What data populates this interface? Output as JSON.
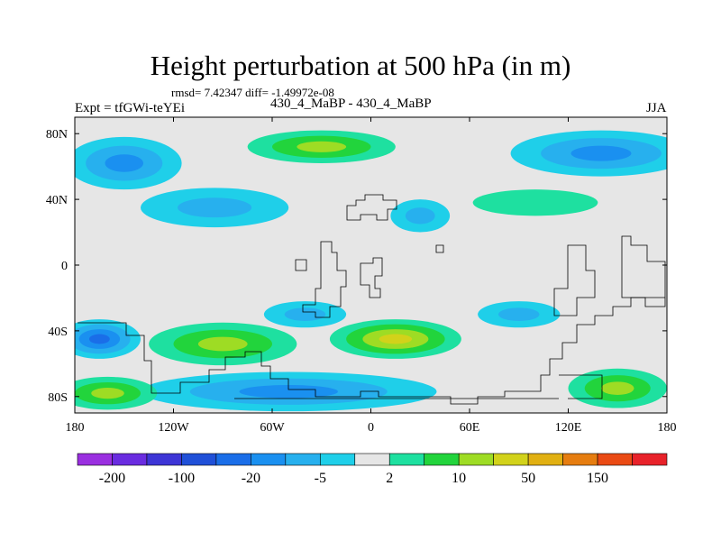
{
  "title": "Height perturbation at 500 hPa (in m)",
  "stats": "rmsd= 7.42347 diff= -1.49972e-08",
  "left_label": "Expt = tfGWi-teYEi",
  "center_label": "430_4_MaBP - 430_4_MaBP",
  "right_label": "JJA",
  "chart_data": {
    "type": "heatmap",
    "title": "Height perturbation at 500 hPa (in m)",
    "xlabel": "",
    "ylabel": "",
    "xlim": [
      -180,
      180
    ],
    "ylim": [
      -90,
      90
    ],
    "x_ticks": [
      {
        "value": -180,
        "label": "180"
      },
      {
        "value": -120,
        "label": "120W"
      },
      {
        "value": -60,
        "label": "60W"
      },
      {
        "value": 0,
        "label": "0"
      },
      {
        "value": 60,
        "label": "60E"
      },
      {
        "value": 120,
        "label": "120E"
      },
      {
        "value": 180,
        "label": "180"
      }
    ],
    "y_ticks": [
      {
        "value": 80,
        "label": "80N"
      },
      {
        "value": 40,
        "label": "40N"
      },
      {
        "value": 0,
        "label": "0"
      },
      {
        "value": -40,
        "label": "40S"
      },
      {
        "value": -80,
        "label": "80S"
      }
    ],
    "colorbar": {
      "colors": [
        "#9a2fe0",
        "#6a2ce0",
        "#3d35d6",
        "#2050d8",
        "#1a6ee8",
        "#1a90f0",
        "#27b0ee",
        "#1fcfe9",
        "#e6e6e6",
        "#1ee0a0",
        "#22d43c",
        "#9edc24",
        "#d2d21a",
        "#e1b012",
        "#e67d10",
        "#ea4a14",
        "#e8222a"
      ],
      "labels": [
        {
          "boundary": 1,
          "label": "-200"
        },
        {
          "boundary": 3,
          "label": "-100"
        },
        {
          "boundary": 5,
          "label": "-20"
        },
        {
          "boundary": 7,
          "label": "-5"
        },
        {
          "boundary": 9,
          "label": "2"
        },
        {
          "boundary": 11,
          "label": "10"
        },
        {
          "boundary": 13,
          "label": "50"
        },
        {
          "boundary": 15,
          "label": "150"
        }
      ]
    },
    "anomaly_features": [
      {
        "lon": -150,
        "lat": 62,
        "rlon": 35,
        "rlat": 16,
        "level": -3,
        "note": "N Pacific low"
      },
      {
        "lon": -95,
        "lat": 35,
        "rlon": 45,
        "rlat": 12,
        "level": -2
      },
      {
        "lon": 30,
        "lat": 30,
        "rlon": 18,
        "rlat": 10,
        "level": -2
      },
      {
        "lon": 140,
        "lat": 68,
        "rlon": 55,
        "rlat": 14,
        "level": -3
      },
      {
        "lon": -30,
        "lat": 72,
        "rlon": 45,
        "rlat": 10,
        "level": 3,
        "note": "N Atlantic high"
      },
      {
        "lon": 100,
        "lat": 38,
        "rlon": 38,
        "rlat": 8,
        "level": 1
      },
      {
        "lon": -165,
        "lat": -45,
        "rlon": 25,
        "rlat": 12,
        "level": -4,
        "note": "S Pacific low"
      },
      {
        "lon": -90,
        "lat": -48,
        "rlon": 45,
        "rlat": 13,
        "level": 3
      },
      {
        "lon": 15,
        "lat": -45,
        "rlon": 40,
        "rlat": 12,
        "level": 4,
        "note": "S Atlantic high"
      },
      {
        "lon": -40,
        "lat": -30,
        "rlon": 25,
        "rlat": 8,
        "level": -2
      },
      {
        "lon": 90,
        "lat": -30,
        "rlon": 25,
        "rlat": 8,
        "level": -2
      },
      {
        "lon": -50,
        "lat": -77,
        "rlon": 90,
        "rlat": 12,
        "level": -3,
        "note": "Antarctic low"
      },
      {
        "lon": -160,
        "lat": -78,
        "rlon": 30,
        "rlat": 10,
        "level": 3
      },
      {
        "lon": 150,
        "lat": -75,
        "rlon": 30,
        "rlat": 12,
        "level": 3
      }
    ]
  }
}
